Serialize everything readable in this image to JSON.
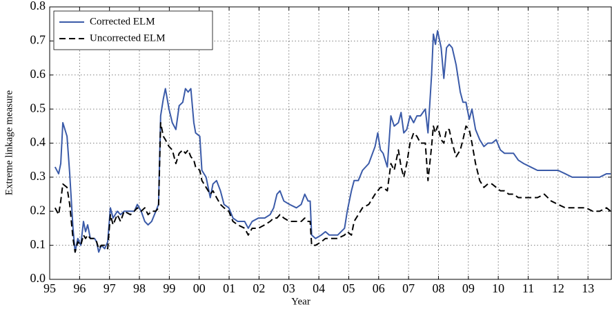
{
  "chart_data": {
    "type": "line",
    "xlabel": "Year",
    "ylabel": "Extreme linkage measure",
    "xlim": [
      1995,
      2013.78
    ],
    "ylim": [
      0,
      0.8
    ],
    "xticks": [
      {
        "value": 1995,
        "label": "95"
      },
      {
        "value": 1996,
        "label": "96"
      },
      {
        "value": 1997,
        "label": "97"
      },
      {
        "value": 1998,
        "label": "98"
      },
      {
        "value": 1999,
        "label": "99"
      },
      {
        "value": 2000,
        "label": "00"
      },
      {
        "value": 2001,
        "label": "01"
      },
      {
        "value": 2002,
        "label": "02"
      },
      {
        "value": 2003,
        "label": "03"
      },
      {
        "value": 2004,
        "label": "04"
      },
      {
        "value": 2005,
        "label": "05"
      },
      {
        "value": 2006,
        "label": "06"
      },
      {
        "value": 2007,
        "label": "07"
      },
      {
        "value": 2008,
        "label": "08"
      },
      {
        "value": 2009,
        "label": "09"
      },
      {
        "value": 2010,
        "label": "10"
      },
      {
        "value": 2011,
        "label": "11"
      },
      {
        "value": 2012,
        "label": "12"
      },
      {
        "value": 2013,
        "label": "13"
      }
    ],
    "yticks": [
      {
        "value": 0,
        "label": "0.0"
      },
      0.1,
      0.2,
      0.3,
      0.4,
      0.5,
      0.6,
      0.7,
      0.8
    ],
    "grid": true,
    "legend": "upper left",
    "x": [
      1995.18,
      1995.3,
      1995.37,
      1995.44,
      1995.58,
      1995.67,
      1995.78,
      1995.85,
      1995.94,
      1996.04,
      1996.13,
      1996.2,
      1996.27,
      1996.36,
      1996.5,
      1996.57,
      1996.64,
      1996.73,
      1996.84,
      1996.94,
      1997.03,
      1997.12,
      1997.26,
      1997.37,
      1997.49,
      1997.7,
      1997.83,
      1997.93,
      1998.06,
      1998.18,
      1998.29,
      1998.41,
      1998.55,
      1998.64,
      1998.71,
      1998.8,
      1998.87,
      1998.99,
      1999.1,
      1999.22,
      1999.33,
      1999.45,
      1999.54,
      1999.63,
      1999.72,
      1999.82,
      1999.88,
      2000.02,
      2000.09,
      2000.23,
      2000.37,
      2000.46,
      2000.58,
      2000.71,
      2000.83,
      2000.99,
      2001.13,
      2001.29,
      2001.52,
      2001.64,
      2001.77,
      2001.98,
      2002.19,
      2002.37,
      2002.49,
      2002.6,
      2002.7,
      2002.83,
      2003.02,
      2003.25,
      2003.41,
      2003.53,
      2003.64,
      2003.71,
      2003.76,
      2003.89,
      2004.08,
      2004.22,
      2004.35,
      2004.63,
      2004.86,
      2004.95,
      2005.09,
      2005.18,
      2005.32,
      2005.46,
      2005.67,
      2005.88,
      2005.97,
      2006.06,
      2006.15,
      2006.29,
      2006.41,
      2006.52,
      2006.66,
      2006.75,
      2006.84,
      2006.94,
      2007.05,
      2007.17,
      2007.28,
      2007.4,
      2007.56,
      2007.65,
      2007.77,
      2007.83,
      2007.9,
      2007.97,
      2008.09,
      2008.18,
      2008.27,
      2008.36,
      2008.46,
      2008.59,
      2008.73,
      2008.82,
      2008.92,
      2009.03,
      2009.12,
      2009.24,
      2009.38,
      2009.52,
      2009.65,
      2009.79,
      2009.93,
      2010.07,
      2010.21,
      2010.35,
      2010.51,
      2010.67,
      2010.85,
      2011.08,
      2011.31,
      2011.54,
      2011.77,
      2012.0,
      2012.24,
      2012.47,
      2012.7,
      2012.93,
      2013.16,
      2013.39,
      2013.62,
      2013.76
    ],
    "series": [
      {
        "name": "Corrected ELM",
        "color": "#3a5aa8",
        "dash": "solid",
        "values": [
          0.33,
          0.31,
          0.34,
          0.46,
          0.42,
          0.31,
          0.15,
          0.08,
          0.12,
          0.1,
          0.17,
          0.14,
          0.16,
          0.12,
          0.12,
          0.11,
          0.08,
          0.1,
          0.09,
          0.11,
          0.21,
          0.18,
          0.2,
          0.19,
          0.2,
          0.2,
          0.2,
          0.22,
          0.2,
          0.17,
          0.16,
          0.17,
          0.2,
          0.22,
          0.48,
          0.53,
          0.56,
          0.5,
          0.46,
          0.44,
          0.51,
          0.52,
          0.56,
          0.55,
          0.56,
          0.46,
          0.43,
          0.42,
          0.32,
          0.3,
          0.24,
          0.28,
          0.29,
          0.26,
          0.22,
          0.21,
          0.18,
          0.17,
          0.17,
          0.15,
          0.17,
          0.18,
          0.18,
          0.19,
          0.21,
          0.25,
          0.26,
          0.23,
          0.22,
          0.21,
          0.22,
          0.25,
          0.23,
          0.23,
          0.13,
          0.12,
          0.13,
          0.14,
          0.13,
          0.13,
          0.15,
          0.2,
          0.26,
          0.29,
          0.29,
          0.32,
          0.34,
          0.39,
          0.43,
          0.38,
          0.37,
          0.33,
          0.48,
          0.45,
          0.46,
          0.49,
          0.43,
          0.44,
          0.48,
          0.46,
          0.48,
          0.48,
          0.5,
          0.43,
          0.6,
          0.72,
          0.69,
          0.73,
          0.68,
          0.59,
          0.68,
          0.69,
          0.68,
          0.63,
          0.55,
          0.52,
          0.52,
          0.47,
          0.5,
          0.44,
          0.41,
          0.39,
          0.4,
          0.4,
          0.41,
          0.38,
          0.37,
          0.37,
          0.37,
          0.35,
          0.34,
          0.33,
          0.32,
          0.32,
          0.32,
          0.32,
          0.31,
          0.3,
          0.3,
          0.3,
          0.3,
          0.3,
          0.31,
          0.31
        ]
      },
      {
        "name": "Uncorrected ELM",
        "color": "#000000",
        "dash": "dashed",
        "values": [
          0.21,
          0.19,
          0.23,
          0.28,
          0.27,
          0.22,
          0.12,
          0.08,
          0.11,
          0.1,
          0.13,
          0.12,
          0.13,
          0.12,
          0.12,
          0.11,
          0.09,
          0.1,
          0.1,
          0.09,
          0.19,
          0.16,
          0.19,
          0.17,
          0.2,
          0.19,
          0.2,
          0.21,
          0.2,
          0.21,
          0.19,
          0.2,
          0.2,
          0.21,
          0.46,
          0.42,
          0.41,
          0.39,
          0.38,
          0.34,
          0.37,
          0.38,
          0.37,
          0.38,
          0.36,
          0.35,
          0.33,
          0.32,
          0.29,
          0.27,
          0.25,
          0.26,
          0.24,
          0.22,
          0.21,
          0.2,
          0.17,
          0.16,
          0.15,
          0.13,
          0.15,
          0.15,
          0.16,
          0.17,
          0.18,
          0.18,
          0.19,
          0.18,
          0.17,
          0.17,
          0.17,
          0.18,
          0.17,
          0.17,
          0.1,
          0.1,
          0.11,
          0.12,
          0.12,
          0.12,
          0.13,
          0.14,
          0.13,
          0.17,
          0.19,
          0.21,
          0.22,
          0.25,
          0.26,
          0.27,
          0.27,
          0.26,
          0.34,
          0.32,
          0.38,
          0.33,
          0.3,
          0.34,
          0.4,
          0.43,
          0.42,
          0.4,
          0.4,
          0.29,
          0.39,
          0.45,
          0.43,
          0.45,
          0.41,
          0.4,
          0.44,
          0.44,
          0.4,
          0.36,
          0.38,
          0.41,
          0.45,
          0.44,
          0.4,
          0.34,
          0.29,
          0.27,
          0.28,
          0.28,
          0.27,
          0.26,
          0.26,
          0.25,
          0.25,
          0.24,
          0.24,
          0.24,
          0.24,
          0.25,
          0.23,
          0.22,
          0.21,
          0.21,
          0.21,
          0.21,
          0.2,
          0.2,
          0.21,
          0.2
        ]
      }
    ]
  }
}
